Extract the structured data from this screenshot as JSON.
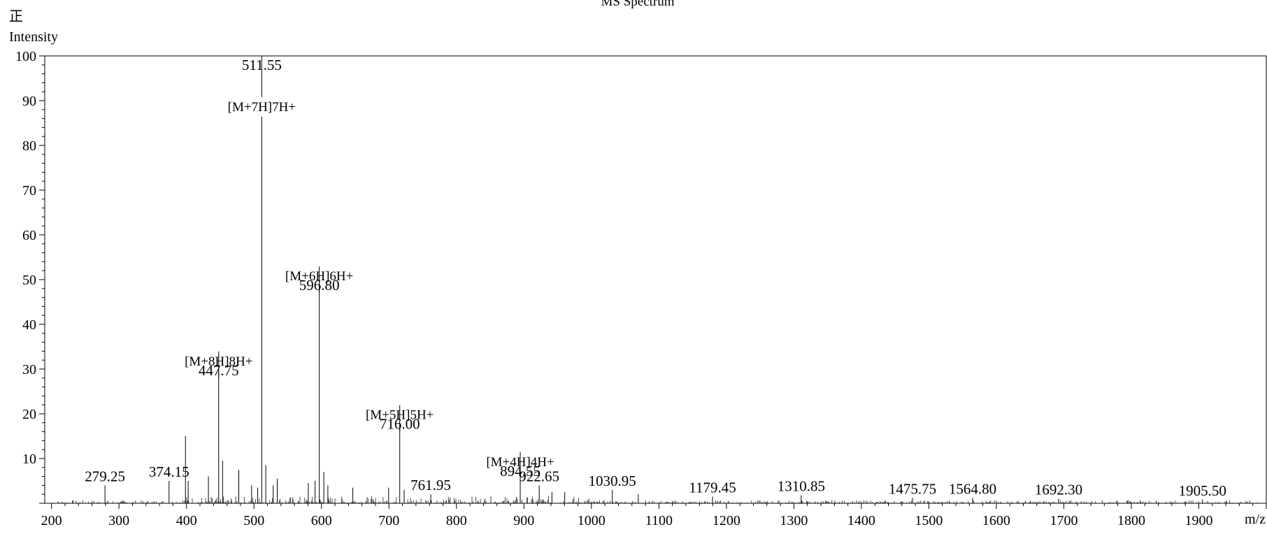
{
  "chart_data": {
    "type": "bar",
    "title": "MS Spectrum",
    "polarity": "正",
    "ylabel": "Intensity",
    "xlabel": "m/z",
    "xlim": [
      190,
      2000
    ],
    "ylim": [
      0,
      100
    ],
    "x_ticks": [
      200,
      300,
      400,
      500,
      600,
      700,
      800,
      900,
      1000,
      1100,
      1200,
      1300,
      1400,
      1500,
      1600,
      1700,
      1800,
      1900
    ],
    "y_ticks": [
      10,
      20,
      30,
      40,
      50,
      60,
      70,
      80,
      90,
      100
    ],
    "grid": false,
    "line_color": "#000000",
    "peaks": [
      {
        "mz": 279.25,
        "intensity": 4,
        "label": "279.25"
      },
      {
        "mz": 374.15,
        "intensity": 5,
        "label": "374.15"
      },
      {
        "mz": 398.5,
        "intensity": 15,
        "label": ""
      },
      {
        "mz": 402.5,
        "intensity": 5,
        "label": ""
      },
      {
        "mz": 432.5,
        "intensity": 6,
        "label": ""
      },
      {
        "mz": 447.75,
        "intensity": 28,
        "label": "447.75",
        "annotation": "[M+8H]8H+"
      },
      {
        "mz": 453.5,
        "intensity": 9.5,
        "label": ""
      },
      {
        "mz": 477.5,
        "intensity": 7.5,
        "label": ""
      },
      {
        "mz": 496.5,
        "intensity": 4,
        "label": ""
      },
      {
        "mz": 505.5,
        "intensity": 3.5,
        "label": ""
      },
      {
        "mz": 511.55,
        "intensity": 100,
        "label": "511.55",
        "annotation": "[M+7H]7H+"
      },
      {
        "mz": 517.5,
        "intensity": 8.5,
        "label": ""
      },
      {
        "mz": 528.5,
        "intensity": 4,
        "label": ""
      },
      {
        "mz": 534.5,
        "intensity": 5.5,
        "label": ""
      },
      {
        "mz": 580.5,
        "intensity": 4.5,
        "label": ""
      },
      {
        "mz": 590.5,
        "intensity": 5,
        "label": ""
      },
      {
        "mz": 596.8,
        "intensity": 47,
        "label": "596.80",
        "annotation": "[M+6H]6H+"
      },
      {
        "mz": 603.5,
        "intensity": 7,
        "label": ""
      },
      {
        "mz": 609.5,
        "intensity": 4,
        "label": ""
      },
      {
        "mz": 646.5,
        "intensity": 3.5,
        "label": ""
      },
      {
        "mz": 699.5,
        "intensity": 3.5,
        "label": ""
      },
      {
        "mz": 716.0,
        "intensity": 16,
        "label": "716.00",
        "annotation": "[M+5H]5H+"
      },
      {
        "mz": 722.5,
        "intensity": 3,
        "label": ""
      },
      {
        "mz": 761.95,
        "intensity": 2,
        "label": "761.95"
      },
      {
        "mz": 894.55,
        "intensity": 5.5,
        "label": "894.55",
        "annotation": "[M+4H]4H+"
      },
      {
        "mz": 922.65,
        "intensity": 4,
        "label": "922.65"
      },
      {
        "mz": 941.5,
        "intensity": 2.5,
        "label": ""
      },
      {
        "mz": 960.5,
        "intensity": 2.5,
        "label": ""
      },
      {
        "mz": 1030.95,
        "intensity": 3,
        "label": "1030.95"
      },
      {
        "mz": 1069.5,
        "intensity": 2,
        "label": ""
      },
      {
        "mz": 1179.45,
        "intensity": 1.5,
        "label": "1179.45"
      },
      {
        "mz": 1310.85,
        "intensity": 1.8,
        "label": "1310.85"
      },
      {
        "mz": 1475.75,
        "intensity": 1.2,
        "label": "1475.75"
      },
      {
        "mz": 1564.8,
        "intensity": 1.2,
        "label": "1564.80"
      },
      {
        "mz": 1692.3,
        "intensity": 1.0,
        "label": "1692.30"
      },
      {
        "mz": 1905.5,
        "intensity": 0.8,
        "label": "1905.50"
      }
    ]
  }
}
